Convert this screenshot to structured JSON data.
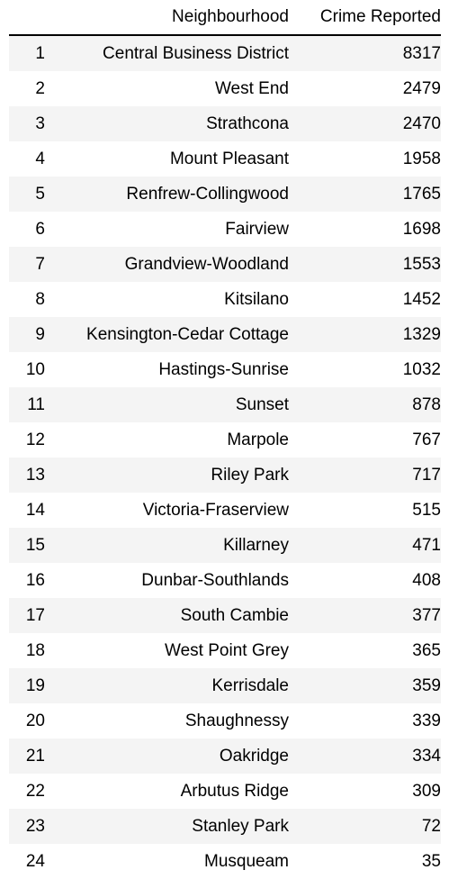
{
  "table": {
    "headers": {
      "index": "",
      "neighbourhood": "Neighbourhood",
      "crime": "Crime Reported"
    },
    "rows": [
      {
        "index": "1",
        "neighbourhood": "Central Business District",
        "crime": "8317"
      },
      {
        "index": "2",
        "neighbourhood": "West End",
        "crime": "2479"
      },
      {
        "index": "3",
        "neighbourhood": "Strathcona",
        "crime": "2470"
      },
      {
        "index": "4",
        "neighbourhood": "Mount Pleasant",
        "crime": "1958"
      },
      {
        "index": "5",
        "neighbourhood": "Renfrew-Collingwood",
        "crime": "1765"
      },
      {
        "index": "6",
        "neighbourhood": "Fairview",
        "crime": "1698"
      },
      {
        "index": "7",
        "neighbourhood": "Grandview-Woodland",
        "crime": "1553"
      },
      {
        "index": "8",
        "neighbourhood": "Kitsilano",
        "crime": "1452"
      },
      {
        "index": "9",
        "neighbourhood": "Kensington-Cedar Cottage",
        "crime": "1329"
      },
      {
        "index": "10",
        "neighbourhood": "Hastings-Sunrise",
        "crime": "1032"
      },
      {
        "index": "11",
        "neighbourhood": "Sunset",
        "crime": "878"
      },
      {
        "index": "12",
        "neighbourhood": "Marpole",
        "crime": "767"
      },
      {
        "index": "13",
        "neighbourhood": "Riley Park",
        "crime": "717"
      },
      {
        "index": "14",
        "neighbourhood": "Victoria-Fraserview",
        "crime": "515"
      },
      {
        "index": "15",
        "neighbourhood": "Killarney",
        "crime": "471"
      },
      {
        "index": "16",
        "neighbourhood": "Dunbar-Southlands",
        "crime": "408"
      },
      {
        "index": "17",
        "neighbourhood": "South Cambie",
        "crime": "377"
      },
      {
        "index": "18",
        "neighbourhood": "West Point Grey",
        "crime": "365"
      },
      {
        "index": "19",
        "neighbourhood": "Kerrisdale",
        "crime": "359"
      },
      {
        "index": "20",
        "neighbourhood": "Shaughnessy",
        "crime": "339"
      },
      {
        "index": "21",
        "neighbourhood": "Oakridge",
        "crime": "334"
      },
      {
        "index": "22",
        "neighbourhood": "Arbutus Ridge",
        "crime": "309"
      },
      {
        "index": "23",
        "neighbourhood": "Stanley Park",
        "crime": "72"
      },
      {
        "index": "24",
        "neighbourhood": "Musqueam",
        "crime": "35"
      }
    ]
  }
}
